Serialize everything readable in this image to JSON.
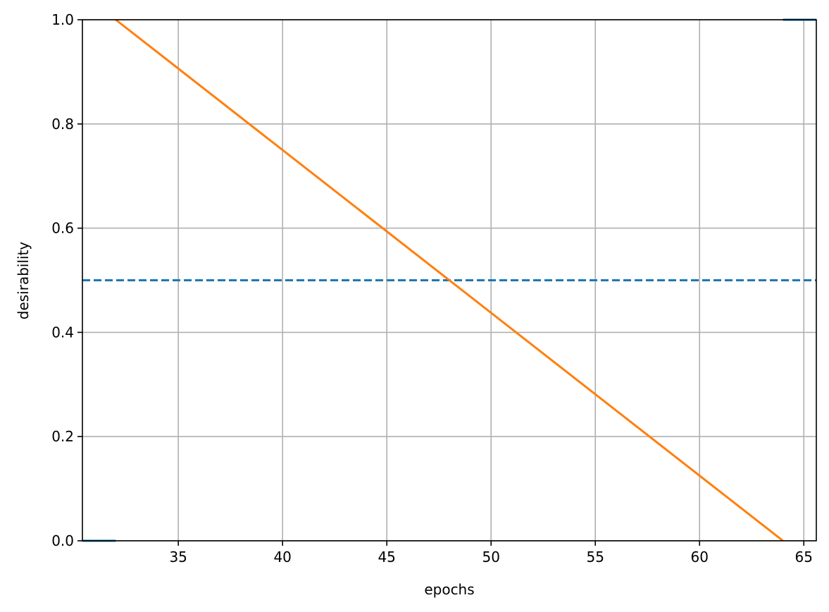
{
  "chart_data": {
    "type": "line",
    "xlabel": "epochs",
    "ylabel": "desirability",
    "xlim": [
      30.4,
      65.6
    ],
    "ylim": [
      0,
      1
    ],
    "x_ticks": [
      35,
      40,
      45,
      50,
      55,
      60,
      65
    ],
    "y_ticks": [
      0.0,
      0.2,
      0.4,
      0.6,
      0.8,
      1.0
    ],
    "x_tick_labels": [
      "35",
      "40",
      "45",
      "50",
      "55",
      "60",
      "65"
    ],
    "y_tick_labels": [
      "0.0",
      "0.2",
      "0.4",
      "0.6",
      "0.8",
      "1.0"
    ],
    "grid": true,
    "series": [
      {
        "x": [
          30.4,
          32.0
        ],
        "y": [
          0.0,
          0.0
        ],
        "color": "#1f77b4",
        "style": "solid"
      },
      {
        "x": [
          64.0,
          65.6
        ],
        "y": [
          1.0,
          1.0
        ],
        "color": "#1f77b4",
        "style": "solid"
      },
      {
        "x": [
          30.4,
          65.6
        ],
        "y": [
          0.5,
          0.5
        ],
        "color": "#1f77b4",
        "style": "dashed"
      },
      {
        "x": [
          32.0,
          64.0
        ],
        "y": [
          1.0,
          0.0
        ],
        "color": "#ff7f0e",
        "style": "solid"
      }
    ]
  }
}
